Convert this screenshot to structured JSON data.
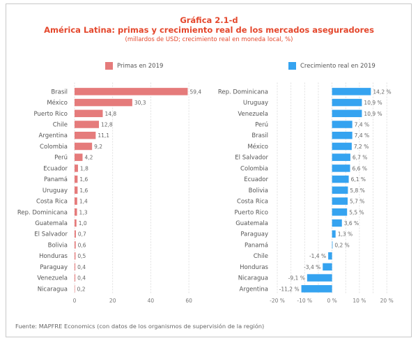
{
  "header": {
    "figure_number": "Gráfica 2.1-d",
    "title": "América Latina: primas y crecimiento real de los mercados aseguradores",
    "subtitle": "(millardos de USD; crecimiento real en moneda local, %)"
  },
  "colors": {
    "primas": "#e57b7b",
    "crecimiento": "#35a3f0",
    "title": "#e4472c"
  },
  "chart_data": [
    {
      "type": "bar",
      "orientation": "horizontal",
      "legend": "Primas en 2019",
      "legend_position": "top",
      "categories": [
        "Brasil",
        "México",
        "Puerto Rico",
        "Chile",
        "Argentina",
        "Colombia",
        "Perú",
        "Ecuador",
        "Panamá",
        "Uruguay",
        "Costa Rica",
        "Rep. Dominicana",
        "Guatemala",
        "El Salvador",
        "Bolivia",
        "Honduras",
        "Paraguay",
        "Venezuela",
        "Nicaragua"
      ],
      "values": [
        59.4,
        30.3,
        14.8,
        12.8,
        11.1,
        9.2,
        4.2,
        1.8,
        1.6,
        1.6,
        1.4,
        1.3,
        1.0,
        0.7,
        0.6,
        0.5,
        0.4,
        0.4,
        0.2
      ],
      "value_labels": [
        "59,4",
        "30,3",
        "14,8",
        "12,8",
        "11,1",
        "9,2",
        "4,2",
        "1,8",
        "1,6",
        "1,6",
        "1,4",
        "1,3",
        "1,0",
        "0,7",
        "0,6",
        "0,5",
        "0,4",
        "0,4",
        "0,2"
      ],
      "xlim": [
        0,
        60
      ],
      "xticks": [
        0,
        20,
        40,
        60
      ],
      "xtick_labels": [
        "0",
        "20",
        "40",
        "60"
      ],
      "grid": true
    },
    {
      "type": "bar",
      "orientation": "horizontal",
      "legend": "Crecimiento real en 2019",
      "legend_position": "top",
      "categories": [
        "Rep. Dominicana",
        "Uruguay",
        "Venezuela",
        "Perú",
        "Brasil",
        "México",
        "El Salvador",
        "Colombia",
        "Ecuador",
        "Bolivia",
        "Costa Rica",
        "Puerto Rico",
        "Guatemala",
        "Paraguay",
        "Panamá",
        "Chile",
        "Honduras",
        "Nicaragua",
        "Argentina"
      ],
      "values": [
        14.2,
        10.9,
        10.9,
        7.4,
        7.4,
        7.2,
        6.7,
        6.6,
        6.1,
        5.8,
        5.7,
        5.5,
        3.6,
        1.3,
        0.2,
        -1.4,
        -3.4,
        -9.1,
        -11.2
      ],
      "value_labels": [
        "14,2 %",
        "10,9 %",
        "10,9 %",
        "7,4 %",
        "7,4 %",
        "7,2 %",
        "6,7 %",
        "6,6 %",
        "6,1 %",
        "5,8 %",
        "5,7 %",
        "5,5 %",
        "3,6 %",
        "1,3 %",
        "0,2 %",
        "-1,4 %",
        "-3,4 %",
        "-9,1 %",
        "-11,2 %"
      ],
      "xlim": [
        -20,
        20
      ],
      "xticks": [
        -20,
        -10,
        0,
        10,
        20
      ],
      "xtick_labels": [
        "-20 %",
        "-10 %",
        "0 %",
        "10 %",
        "20 %"
      ],
      "grid": true
    }
  ],
  "footer": {
    "source": "Fuente: MAPFRE Economics (con datos de los organismos de supervisión de la región)"
  }
}
